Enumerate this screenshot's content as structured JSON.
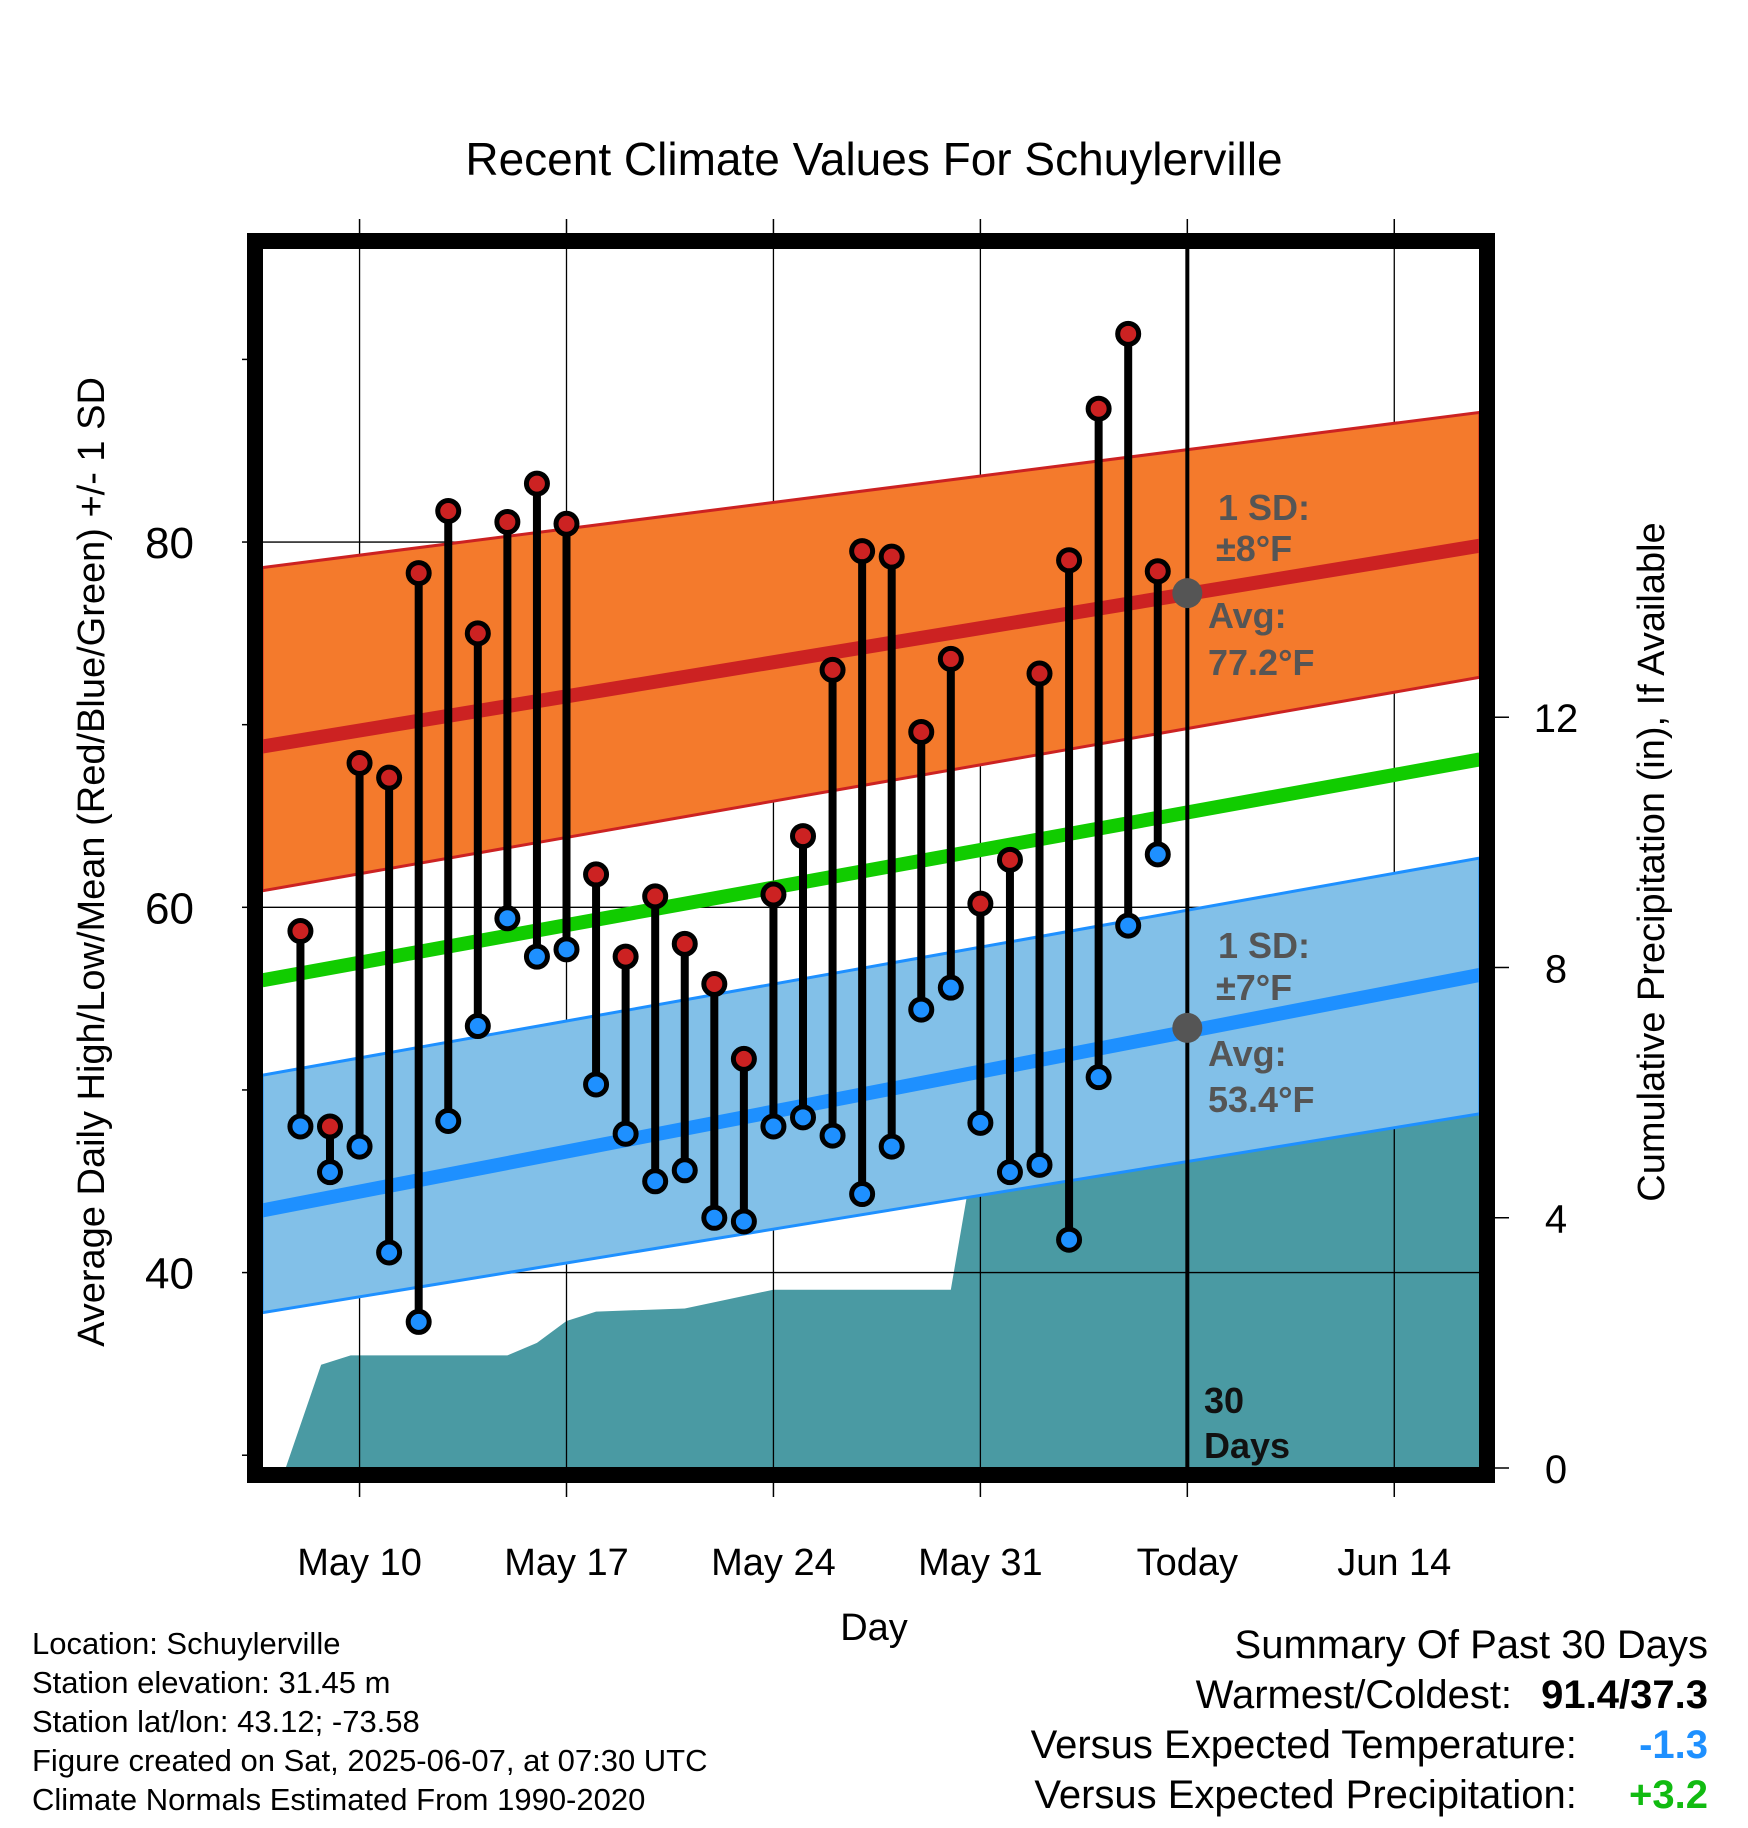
{
  "chart_data": {
    "type": "line",
    "title": "Recent Climate Values For Schuylerville",
    "xlabel": "Day",
    "ylabel": "Average Daily High/Low/Mean (Red/Blue/Green) +/- 1 SD",
    "y2label": "Cumulative Precipitation (in), If Available",
    "x_tick_labels": [
      "May 10",
      "May 17",
      "May 24",
      "May 31",
      "Today",
      "Jun 14"
    ],
    "y_ticks": [
      40,
      60,
      80
    ],
    "y_minor_ticks": [
      30,
      50,
      70,
      90
    ],
    "y2_ticks": [
      0,
      4,
      8,
      12
    ],
    "ylim": [
      29.3,
      96.1
    ],
    "y2lim": [
      0,
      19.5
    ],
    "xlim": [
      "May 6.7",
      "Jun 16.9"
    ],
    "today": "Jun 7",
    "series": [
      {
        "name": "High",
        "color": "#cc2222",
        "points": [
          [
            "May 8",
            58.7
          ],
          [
            "May 9",
            48.0
          ],
          [
            "May 10",
            67.9
          ],
          [
            "May 11",
            67.1
          ],
          [
            "May 12",
            78.3
          ],
          [
            "May 13",
            81.7
          ],
          [
            "May 14",
            75.0
          ],
          [
            "May 15",
            81.1
          ],
          [
            "May 16",
            83.2
          ],
          [
            "May 17",
            81.0
          ],
          [
            "May 18",
            61.8
          ],
          [
            "May 19",
            57.3
          ],
          [
            "May 20",
            60.6
          ],
          [
            "May 21",
            58.0
          ],
          [
            "May 22",
            55.8
          ],
          [
            "May 23",
            51.7
          ],
          [
            "May 24",
            60.7
          ],
          [
            "May 25",
            63.9
          ],
          [
            "May 26",
            73.0
          ],
          [
            "May 27",
            79.5
          ],
          [
            "May 28",
            79.2
          ],
          [
            "May 29",
            69.6
          ],
          [
            "May 30",
            73.6
          ],
          [
            "May 31",
            60.2
          ],
          [
            "Jun 1",
            62.6
          ],
          [
            "Jun 2",
            72.8
          ],
          [
            "Jun 3",
            79.0
          ],
          [
            "Jun 4",
            87.3
          ],
          [
            "Jun 5",
            91.4
          ],
          [
            "Jun 6",
            78.4
          ]
        ]
      },
      {
        "name": "Low",
        "color": "#1e90ff",
        "points": [
          [
            "May 8",
            48.0
          ],
          [
            "May 9",
            45.5
          ],
          [
            "May 10",
            46.9
          ],
          [
            "May 11",
            41.1
          ],
          [
            "May 12",
            37.3
          ],
          [
            "May 13",
            48.3
          ],
          [
            "May 14",
            53.5
          ],
          [
            "May 15",
            59.4
          ],
          [
            "May 16",
            57.3
          ],
          [
            "May 17",
            57.7
          ],
          [
            "May 18",
            50.3
          ],
          [
            "May 19",
            47.6
          ],
          [
            "May 20",
            45.0
          ],
          [
            "May 21",
            45.6
          ],
          [
            "May 22",
            43.0
          ],
          [
            "May 23",
            42.8
          ],
          [
            "May 24",
            48.0
          ],
          [
            "May 25",
            48.5
          ],
          [
            "May 26",
            47.5
          ],
          [
            "May 27",
            44.3
          ],
          [
            "May 28",
            46.9
          ],
          [
            "May 29",
            54.4
          ],
          [
            "May 30",
            55.6
          ],
          [
            "May 31",
            48.2
          ],
          [
            "Jun 1",
            45.5
          ],
          [
            "Jun 2",
            45.9
          ],
          [
            "Jun 3",
            41.8
          ],
          [
            "Jun 4",
            50.7
          ],
          [
            "Jun 5",
            59.0
          ],
          [
            "Jun 6",
            62.9
          ]
        ]
      }
    ],
    "normals": {
      "high_mean": {
        "start": [
          "May 6.7",
          68.8
        ],
        "end": [
          "Jun 16.9",
          79.8
        ]
      },
      "high_band": {
        "start": [
          60.9,
          78.6
        ],
        "end": [
          72.6,
          87.1
        ]
      },
      "mean": {
        "start": [
          "May 6.7",
          56.0
        ],
        "end": [
          "Jun 16.9",
          68.1
        ]
      },
      "low_mean": {
        "start": [
          "May 6.7",
          43.4
        ],
        "end": [
          "Jun 16.9",
          56.3
        ]
      },
      "low_band": {
        "start": [
          37.8,
          50.8
        ],
        "end": [
          48.7,
          62.7
        ]
      }
    },
    "precipitation": [
      [
        "May 7.5",
        0.0
      ],
      [
        "May 8.7",
        1.65
      ],
      [
        "May 9.7",
        1.8
      ],
      [
        "May 15",
        1.8
      ],
      [
        "May 16",
        2.0
      ],
      [
        "May 17",
        2.35
      ],
      [
        "May 18",
        2.5
      ],
      [
        "May 21",
        2.55
      ],
      [
        "May 22",
        2.65
      ],
      [
        "May 24",
        2.85
      ],
      [
        "May 30",
        2.85
      ],
      [
        "May 31",
        5.6
      ],
      [
        "Jun 4",
        5.6
      ],
      [
        "Jun 5",
        6.1
      ],
      [
        "Jun 6",
        6.5
      ],
      [
        "Jun 16.9",
        6.5
      ]
    ],
    "annotations": {
      "high_sd_label": "1 SD:",
      "high_sd_value": "±8°F",
      "high_avg_label": "Avg:",
      "high_avg_value": "77.2°F",
      "high_avg_y": 77.2,
      "low_sd_label": "1 SD:",
      "low_sd_value": "±7°F",
      "low_avg_label": "Avg:",
      "low_avg_value": "53.4°F",
      "low_avg_y": 53.4,
      "window_count": "30",
      "window_unit": "Days"
    },
    "colors": {
      "high_band": "#f47a2c",
      "high_line": "#cc2222",
      "low_band": "#82c0e8",
      "low_line": "#1e90ff",
      "mean_line": "#11cc00",
      "precip": "#4a9aa3",
      "high_dot": "#cc2222",
      "low_dot": "#1e90ff",
      "annotation": "#555555"
    }
  },
  "footer": {
    "location": "Location: Schuylerville",
    "elevation": "Station elevation: 31.45 m",
    "latlon": "Station lat/lon: 43.12; -73.58",
    "created": "Figure created on Sat, 2025-06-07, at 07:30 UTC",
    "normals": "Climate Normals Estimated From 1990-2020"
  },
  "summary": {
    "title": "Summary Of Past 30 Days",
    "warmest_label": "Warmest/Coldest:",
    "warmest_value": "91.4/37.3",
    "temp_label": "Versus Expected Temperature:",
    "temp_value": "-1.3",
    "precip_label": "Versus Expected Precipitation:",
    "precip_value": "+3.2"
  }
}
